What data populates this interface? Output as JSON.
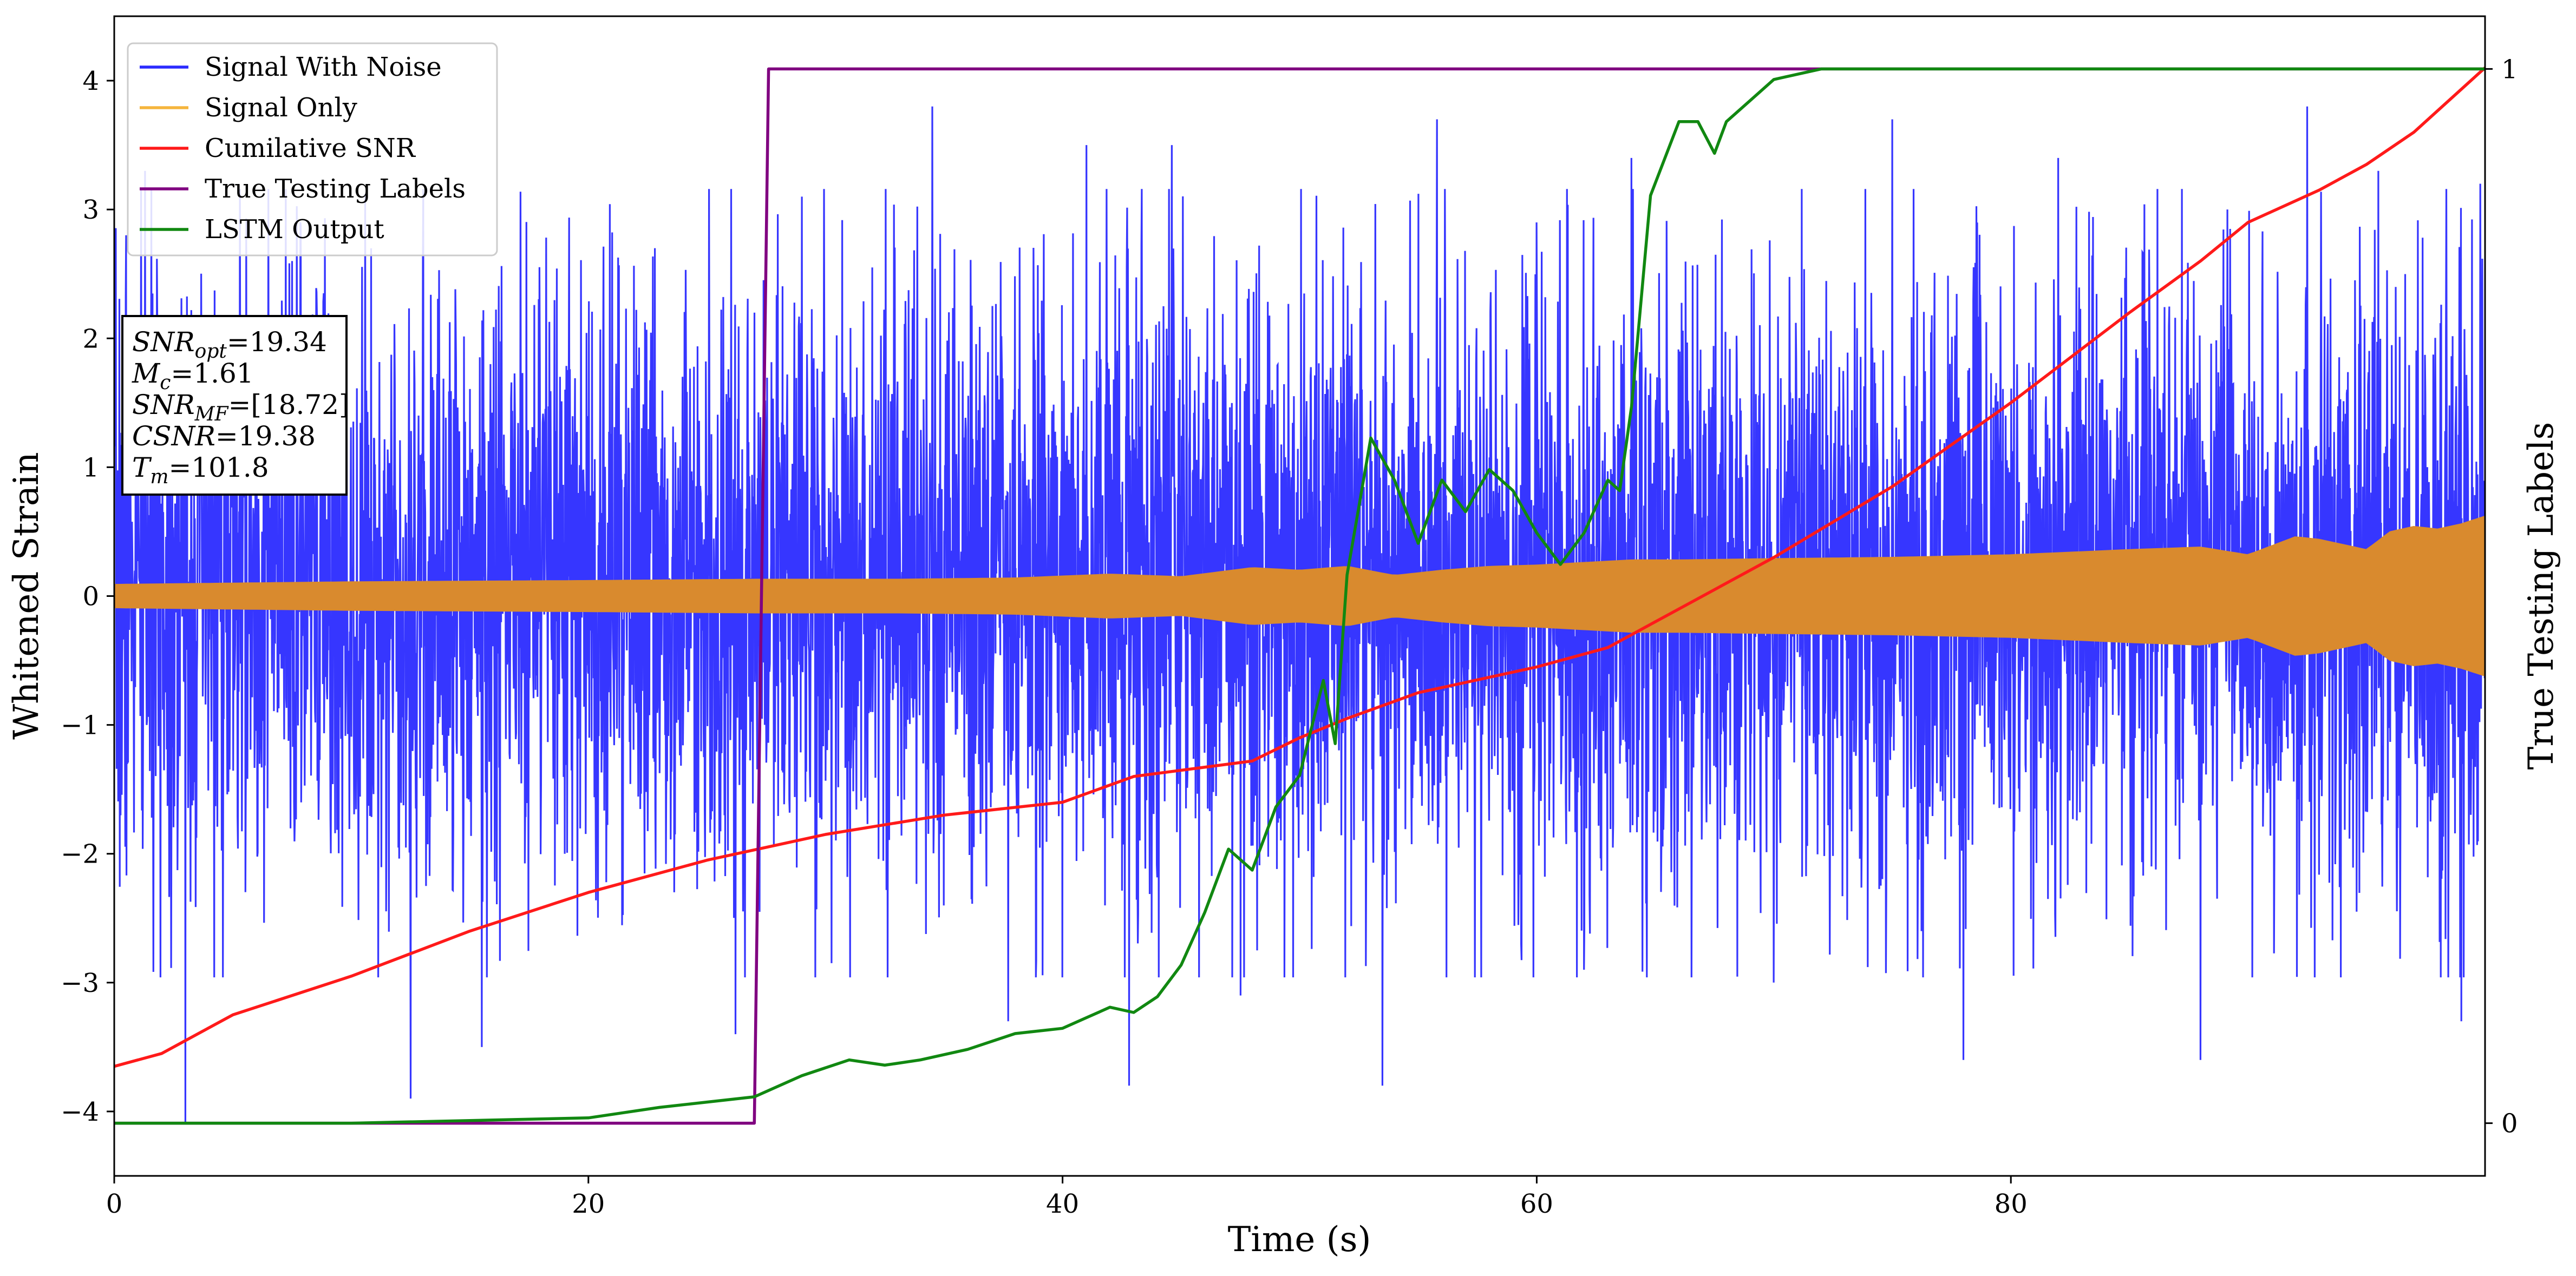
{
  "chart_data": {
    "type": "line",
    "title": "",
    "xlabel": "Time (s)",
    "ylabel": "Whitened Strain",
    "y2label": "True Testing Labels",
    "xlim": [
      0,
      100
    ],
    "ylim": [
      -4.5,
      4.5
    ],
    "y2lim": [
      -0.05,
      1.05
    ],
    "x_ticks": [
      0,
      20,
      40,
      60,
      80
    ],
    "x_tick_labels": [
      "0",
      "20",
      "40",
      "60",
      "80"
    ],
    "y_ticks": [
      -4,
      -3,
      -2,
      -1,
      0,
      1,
      2,
      3,
      4
    ],
    "y_tick_labels": [
      "−4",
      "−3",
      "−2",
      "−1",
      "0",
      "1",
      "2",
      "3",
      "4"
    ],
    "y2_ticks": [
      0,
      1
    ],
    "y2_tick_labels": [
      "0",
      "1"
    ],
    "grid": false,
    "legend": {
      "placement": "top-left",
      "entries": [
        {
          "label": "Signal With Noise",
          "color": "#2b2bff"
        },
        {
          "label": "Signal Only",
          "color": "#f5b53d"
        },
        {
          "label": "Cumilative SNR",
          "color": "#ff1a1a"
        },
        {
          "label": "True Testing Labels",
          "color": "#800080"
        },
        {
          "label": "LSTM Output",
          "color": "#118811"
        }
      ]
    },
    "annotation": {
      "placement": "upper-left",
      "lines": [
        {
          "sym": "SNR",
          "sub": "opt",
          "val": "=19.34"
        },
        {
          "sym": "M",
          "sub": "c",
          "val": "=1.61"
        },
        {
          "sym": "SNR",
          "sub": "MF",
          "val": "=[18.72]"
        },
        {
          "sym": "CSNR",
          "sub": "",
          "val": "=19.38"
        },
        {
          "sym": "T",
          "sub": "m",
          "val": "=101.8"
        }
      ]
    },
    "series": [
      {
        "name": "Signal With Noise",
        "axis": "left",
        "color": "#2b2bff",
        "kind": "noise",
        "envelope": {
          "x": [
            0,
            100
          ],
          "low": [
            -2.6,
            -2.6
          ],
          "high": [
            3.0,
            3.0
          ]
        },
        "outliers": [
          [
            0.5,
            2.8
          ],
          [
            1.3,
            3.3
          ],
          [
            3.0,
            -4.1
          ],
          [
            7.5,
            2.6
          ],
          [
            12.5,
            -3.9
          ],
          [
            15.5,
            -3.5
          ],
          [
            19.0,
            -2.0
          ],
          [
            22.8,
            2.7
          ],
          [
            26.2,
            -3.4
          ],
          [
            27.0,
            2.2
          ],
          [
            29.0,
            3.1
          ],
          [
            34.5,
            3.8
          ],
          [
            37.7,
            -3.3
          ],
          [
            41.0,
            3.5
          ],
          [
            42.8,
            -3.8
          ],
          [
            44.6,
            3.5
          ],
          [
            47.5,
            -3.1
          ],
          [
            53.5,
            -3.8
          ],
          [
            55.8,
            3.7
          ],
          [
            60.0,
            2.9
          ],
          [
            62.0,
            -2.9
          ],
          [
            64.0,
            3.4
          ],
          [
            70.0,
            -3.0
          ],
          [
            75.0,
            3.7
          ],
          [
            78.0,
            -3.6
          ],
          [
            82.0,
            3.4
          ],
          [
            88.0,
            -3.6
          ],
          [
            92.5,
            3.8
          ],
          [
            95.5,
            3.3
          ],
          [
            99.0,
            -3.3
          ],
          [
            99.8,
            3.2
          ]
        ]
      },
      {
        "name": "Signal Only",
        "axis": "left",
        "color": "#d98a2e",
        "kind": "band",
        "x": [
          0,
          10,
          20,
          27,
          33,
          38,
          42,
          45,
          48,
          50,
          52,
          54,
          56,
          58,
          60,
          62,
          64,
          66,
          70,
          75,
          80,
          85,
          88,
          90,
          92,
          93,
          95,
          96,
          97,
          98,
          99,
          100
        ],
        "amplitude": [
          0.09,
          0.11,
          0.12,
          0.13,
          0.13,
          0.14,
          0.17,
          0.15,
          0.22,
          0.2,
          0.23,
          0.16,
          0.2,
          0.23,
          0.24,
          0.26,
          0.28,
          0.28,
          0.29,
          0.3,
          0.32,
          0.36,
          0.38,
          0.32,
          0.46,
          0.44,
          0.36,
          0.5,
          0.54,
          0.52,
          0.56,
          0.62
        ]
      },
      {
        "name": "Cumilative SNR",
        "axis": "left",
        "color": "#ff1a1a",
        "x": [
          0,
          2,
          5,
          10,
          15,
          20,
          25,
          30,
          35,
          40,
          43,
          48,
          50,
          52,
          55,
          60,
          63,
          65,
          70,
          75,
          80,
          85,
          88,
          90,
          93,
          95,
          97,
          100
        ],
        "y": [
          -3.65,
          -3.55,
          -3.25,
          -2.95,
          -2.6,
          -2.3,
          -2.05,
          -1.85,
          -1.7,
          -1.6,
          -1.4,
          -1.28,
          -1.1,
          -0.95,
          -0.75,
          -0.55,
          -0.4,
          -0.2,
          0.3,
          0.85,
          1.5,
          2.2,
          2.6,
          2.9,
          3.15,
          3.35,
          3.6,
          4.1
        ]
      },
      {
        "name": "True Testing Labels",
        "axis": "right",
        "color": "#800080",
        "x": [
          0,
          27.0,
          27.6,
          100
        ],
        "y": [
          0,
          0,
          1,
          1
        ]
      },
      {
        "name": "LSTM Output",
        "axis": "right",
        "color": "#118811",
        "x": [
          0,
          10,
          20,
          23,
          25,
          27,
          29,
          31,
          32.5,
          34,
          36,
          38,
          40,
          41,
          42,
          43,
          44,
          45,
          46,
          47,
          48,
          49,
          50,
          51,
          51.5,
          52,
          53,
          54,
          55,
          56,
          57,
          58,
          59,
          60,
          61,
          62,
          63,
          63.5,
          64,
          64.8,
          66,
          66.8,
          67.5,
          68,
          69,
          70,
          72,
          75,
          80,
          100
        ],
        "y": [
          0,
          0,
          0.005,
          0.015,
          0.02,
          0.025,
          0.045,
          0.06,
          0.055,
          0.06,
          0.07,
          0.085,
          0.09,
          0.1,
          0.11,
          0.105,
          0.12,
          0.15,
          0.2,
          0.26,
          0.24,
          0.3,
          0.33,
          0.42,
          0.36,
          0.52,
          0.65,
          0.61,
          0.55,
          0.61,
          0.58,
          0.62,
          0.6,
          0.56,
          0.53,
          0.56,
          0.61,
          0.6,
          0.68,
          0.88,
          0.95,
          0.95,
          0.92,
          0.95,
          0.97,
          0.99,
          1.0,
          1.0,
          1.0,
          1.0
        ]
      }
    ]
  }
}
